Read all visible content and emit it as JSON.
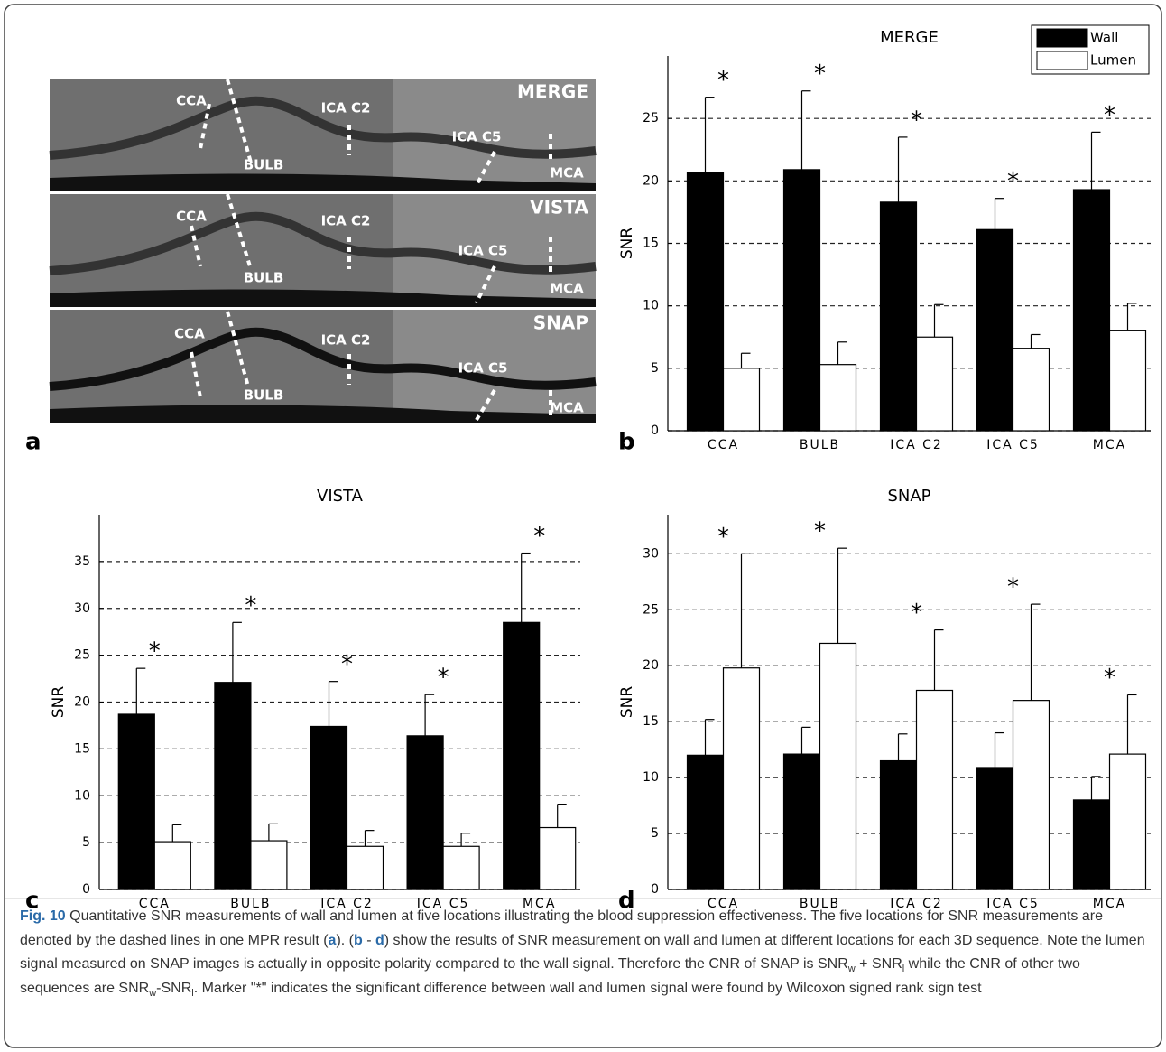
{
  "figure": {
    "panel_a": {
      "letter": "a",
      "panels": [
        {
          "name": "MERGE",
          "labels": [
            "CCA",
            "BULB",
            "ICA C2",
            "ICA C5",
            "MCA"
          ]
        },
        {
          "name": "VISTA",
          "labels": [
            "CCA",
            "BULB",
            "ICA C2",
            "ICA C5",
            "MCA"
          ]
        },
        {
          "name": "SNAP",
          "labels": [
            "CCA",
            "BULB",
            "ICA C2",
            "ICA C5",
            "MCA"
          ]
        }
      ]
    },
    "caption": [
      "Fig. 10",
      " Quantitative SNR measurements of wall and lumen at five locations illustrating the blood suppression effectiveness. The five locations for SNR measurements are denoted by the dashed lines in one MPR result (",
      "a",
      "). (",
      "b",
      " - ",
      "d",
      ") show the results of SNR measurement on wall and lumen at different locations for each 3D sequence. Note the lumen signal measured on SNAP images is actually in opposite polarity compared to the wall signal. Therefore the CNR of SNAP is SNR",
      "w",
      " + SNR",
      "l",
      " while the CNR of other two sequences are SNR",
      "w",
      "-SNR",
      "l",
      ". Marker \"*\" indicates the significant difference between wall and lumen signal were found by Wilcoxon signed rank sign test"
    ]
  },
  "chart_data": [
    {
      "type": "bar",
      "panel": "b",
      "title": "MERGE",
      "y_label": "SNR",
      "categories": [
        "CCA",
        "BULB",
        "ICA C2",
        "ICA C5",
        "MCA"
      ],
      "series": [
        {
          "name": "Wall",
          "color": "#000000",
          "values": [
            20.7,
            20.9,
            18.3,
            16.1,
            19.3
          ],
          "errors": [
            6.0,
            6.3,
            5.2,
            2.5,
            4.6
          ]
        },
        {
          "name": "Lumen",
          "color": "#ffffff",
          "values": [
            5.0,
            5.3,
            7.5,
            6.6,
            8.0
          ],
          "errors": [
            1.2,
            1.8,
            2.6,
            1.1,
            2.2
          ]
        }
      ],
      "markers": [
        "*",
        "*",
        "*",
        "*",
        "*"
      ],
      "ylim": [
        0,
        30
      ],
      "yticks": [
        0,
        5,
        10,
        15,
        20,
        25
      ],
      "grid": true,
      "legend": "top-right"
    },
    {
      "type": "bar",
      "panel": "c",
      "title": "VISTA",
      "y_label": "SNR",
      "categories": [
        "CCA",
        "BULB",
        "ICA C2",
        "ICA C5",
        "MCA"
      ],
      "series": [
        {
          "name": "Wall",
          "color": "#000000",
          "values": [
            18.7,
            22.1,
            17.4,
            16.4,
            28.5
          ],
          "errors": [
            4.9,
            6.4,
            4.8,
            4.4,
            7.4
          ]
        },
        {
          "name": "Lumen",
          "color": "#ffffff",
          "values": [
            5.1,
            5.2,
            4.6,
            4.6,
            6.6
          ],
          "errors": [
            1.8,
            1.8,
            1.7,
            1.4,
            2.5
          ]
        }
      ],
      "markers": [
        "*",
        "*",
        "*",
        "*",
        "*"
      ],
      "ylim": [
        0,
        40
      ],
      "yticks": [
        0,
        5,
        10,
        15,
        20,
        25,
        30,
        35
      ],
      "grid": true
    },
    {
      "type": "bar",
      "panel": "d",
      "title": "SNAP",
      "y_label": "SNR",
      "categories": [
        "CCA",
        "BULB",
        "ICA C2",
        "ICA C5",
        "MCA"
      ],
      "series": [
        {
          "name": "Wall",
          "color": "#000000",
          "values": [
            12.0,
            12.1,
            11.5,
            10.9,
            8.0
          ],
          "errors": [
            3.2,
            2.4,
            2.4,
            3.1,
            2.1
          ]
        },
        {
          "name": "Lumen",
          "color": "#ffffff",
          "values": [
            19.8,
            22.0,
            17.8,
            16.9,
            12.1
          ],
          "errors": [
            10.2,
            8.5,
            5.4,
            8.6,
            5.3
          ]
        }
      ],
      "markers": [
        "*",
        "*",
        "*",
        "*",
        "*"
      ],
      "ylim": [
        0,
        33.5
      ],
      "yticks": [
        0,
        5,
        10,
        15,
        20,
        25,
        30
      ],
      "grid": true
    }
  ]
}
